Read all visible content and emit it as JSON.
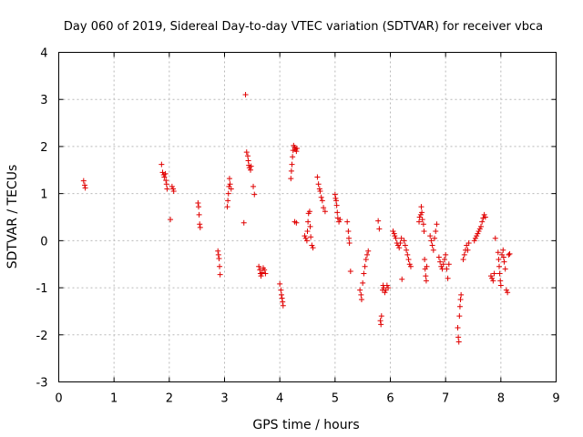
{
  "chart_data": {
    "type": "scatter",
    "title": "Day 060 of 2019, Sidereal Day-to-day VTEC variation (SDTVAR) for receiver vbca",
    "xlabel": "GPS time / hours",
    "ylabel": "SDTVAR / TECUs",
    "xlim": [
      0,
      9
    ],
    "ylim": [
      -3,
      4
    ],
    "xticks": [
      "0",
      "1",
      "2",
      "3",
      "4",
      "5",
      "6",
      "7",
      "8",
      "9"
    ],
    "yticks": [
      "-3",
      "-2",
      "-1",
      "0",
      "1",
      "2",
      "3",
      "4"
    ],
    "grid": true,
    "marker": "+",
    "color": "#e00000",
    "series": [
      {
        "name": "SDTVAR",
        "points": [
          [
            0.45,
            1.27
          ],
          [
            0.47,
            1.18
          ],
          [
            0.48,
            1.12
          ],
          [
            1.86,
            1.62
          ],
          [
            1.88,
            1.45
          ],
          [
            1.9,
            1.4
          ],
          [
            1.91,
            1.35
          ],
          [
            1.93,
            1.42
          ],
          [
            1.94,
            1.28
          ],
          [
            1.95,
            1.2
          ],
          [
            1.96,
            1.1
          ],
          [
            2.02,
            0.45
          ],
          [
            2.05,
            1.15
          ],
          [
            2.07,
            1.1
          ],
          [
            2.08,
            1.05
          ],
          [
            2.52,
            0.8
          ],
          [
            2.53,
            0.72
          ],
          [
            2.54,
            0.55
          ],
          [
            2.55,
            0.35
          ],
          [
            2.56,
            0.28
          ],
          [
            2.88,
            -0.22
          ],
          [
            2.89,
            -0.3
          ],
          [
            2.9,
            -0.38
          ],
          [
            2.91,
            -0.55
          ],
          [
            2.92,
            -0.72
          ],
          [
            3.05,
            0.72
          ],
          [
            3.06,
            0.85
          ],
          [
            3.07,
            1.0
          ],
          [
            3.08,
            1.15
          ],
          [
            3.09,
            1.32
          ],
          [
            3.1,
            1.2
          ],
          [
            3.12,
            1.1
          ],
          [
            3.35,
            0.38
          ],
          [
            3.38,
            3.1
          ],
          [
            3.4,
            1.88
          ],
          [
            3.42,
            1.8
          ],
          [
            3.43,
            1.7
          ],
          [
            3.44,
            1.6
          ],
          [
            3.45,
            1.55
          ],
          [
            3.47,
            1.5
          ],
          [
            3.48,
            1.58
          ],
          [
            3.52,
            1.15
          ],
          [
            3.54,
            0.98
          ],
          [
            3.62,
            -0.55
          ],
          [
            3.64,
            -0.62
          ],
          [
            3.65,
            -0.7
          ],
          [
            3.66,
            -0.75
          ],
          [
            3.68,
            -0.68
          ],
          [
            3.7,
            -0.58
          ],
          [
            3.72,
            -0.62
          ],
          [
            3.74,
            -0.7
          ],
          [
            4.0,
            -0.92
          ],
          [
            4.02,
            -1.05
          ],
          [
            4.03,
            -1.15
          ],
          [
            4.04,
            -1.22
          ],
          [
            4.05,
            -1.3
          ],
          [
            4.06,
            -1.38
          ],
          [
            4.2,
            1.32
          ],
          [
            4.21,
            1.48
          ],
          [
            4.22,
            1.62
          ],
          [
            4.23,
            1.78
          ],
          [
            4.24,
            1.92
          ],
          [
            4.25,
            2.02
          ],
          [
            4.27,
            1.98
          ],
          [
            4.28,
            1.94
          ],
          [
            4.3,
            1.9
          ],
          [
            4.31,
            1.96
          ],
          [
            4.27,
            0.4
          ],
          [
            4.3,
            0.38
          ],
          [
            4.45,
            0.1
          ],
          [
            4.47,
            0.05
          ],
          [
            4.49,
            0.0
          ],
          [
            4.5,
            0.2
          ],
          [
            4.51,
            0.4
          ],
          [
            4.52,
            0.58
          ],
          [
            4.54,
            0.62
          ],
          [
            4.55,
            0.3
          ],
          [
            4.56,
            0.08
          ],
          [
            4.58,
            -0.1
          ],
          [
            4.6,
            -0.15
          ],
          [
            4.68,
            1.35
          ],
          [
            4.7,
            1.2
          ],
          [
            4.72,
            1.1
          ],
          [
            4.73,
            1.05
          ],
          [
            4.75,
            0.92
          ],
          [
            4.77,
            0.85
          ],
          [
            4.79,
            0.7
          ],
          [
            4.82,
            0.62
          ],
          [
            5.0,
            0.98
          ],
          [
            5.01,
            0.9
          ],
          [
            5.02,
            0.85
          ],
          [
            5.03,
            0.75
          ],
          [
            5.04,
            0.6
          ],
          [
            5.05,
            0.48
          ],
          [
            5.07,
            0.4
          ],
          [
            5.09,
            0.45
          ],
          [
            5.22,
            0.4
          ],
          [
            5.24,
            0.2
          ],
          [
            5.25,
            0.05
          ],
          [
            5.26,
            -0.05
          ],
          [
            5.28,
            -0.65
          ],
          [
            5.45,
            -1.05
          ],
          [
            5.47,
            -1.15
          ],
          [
            5.48,
            -1.25
          ],
          [
            5.5,
            -0.9
          ],
          [
            5.52,
            -0.7
          ],
          [
            5.54,
            -0.55
          ],
          [
            5.56,
            -0.4
          ],
          [
            5.58,
            -0.3
          ],
          [
            5.6,
            -0.22
          ],
          [
            5.78,
            0.42
          ],
          [
            5.8,
            0.25
          ],
          [
            5.82,
            -1.7
          ],
          [
            5.83,
            -1.78
          ],
          [
            5.84,
            -1.6
          ],
          [
            5.86,
            -1.05
          ],
          [
            5.87,
            -0.95
          ],
          [
            5.88,
            -1.0
          ],
          [
            5.9,
            -1.1
          ],
          [
            5.92,
            -1.05
          ],
          [
            5.94,
            -0.95
          ],
          [
            5.96,
            -1.0
          ],
          [
            6.05,
            0.2
          ],
          [
            6.07,
            0.15
          ],
          [
            6.08,
            0.1
          ],
          [
            6.1,
            0.05
          ],
          [
            6.12,
            -0.05
          ],
          [
            6.14,
            -0.1
          ],
          [
            6.16,
            -0.15
          ],
          [
            6.18,
            -0.05
          ],
          [
            6.2,
            0.05
          ],
          [
            6.21,
            -0.82
          ],
          [
            6.25,
            0.0
          ],
          [
            6.27,
            -0.1
          ],
          [
            6.29,
            -0.2
          ],
          [
            6.31,
            -0.3
          ],
          [
            6.33,
            -0.4
          ],
          [
            6.35,
            -0.5
          ],
          [
            6.37,
            -0.55
          ],
          [
            6.52,
            0.4
          ],
          [
            6.53,
            0.5
          ],
          [
            6.55,
            0.55
          ],
          [
            6.56,
            0.72
          ],
          [
            6.57,
            0.6
          ],
          [
            6.58,
            0.45
          ],
          [
            6.6,
            0.35
          ],
          [
            6.61,
            0.2
          ],
          [
            6.62,
            -0.4
          ],
          [
            6.63,
            -0.6
          ],
          [
            6.64,
            -0.75
          ],
          [
            6.65,
            -0.85
          ],
          [
            6.66,
            -0.55
          ],
          [
            6.72,
            0.1
          ],
          [
            6.74,
            0.0
          ],
          [
            6.76,
            -0.1
          ],
          [
            6.78,
            -0.2
          ],
          [
            6.8,
            0.05
          ],
          [
            6.82,
            0.2
          ],
          [
            6.84,
            0.35
          ],
          [
            6.88,
            -0.35
          ],
          [
            6.9,
            -0.45
          ],
          [
            6.92,
            -0.55
          ],
          [
            6.94,
            -0.6
          ],
          [
            6.96,
            -0.5
          ],
          [
            6.98,
            -0.4
          ],
          [
            7.0,
            -0.3
          ],
          [
            7.02,
            -0.6
          ],
          [
            7.04,
            -0.8
          ],
          [
            7.06,
            -0.5
          ],
          [
            7.22,
            -1.85
          ],
          [
            7.23,
            -2.05
          ],
          [
            7.24,
            -2.15
          ],
          [
            7.25,
            -1.6
          ],
          [
            7.26,
            -1.4
          ],
          [
            7.27,
            -1.25
          ],
          [
            7.28,
            -1.15
          ],
          [
            7.32,
            -0.4
          ],
          [
            7.34,
            -0.3
          ],
          [
            7.36,
            -0.2
          ],
          [
            7.38,
            -0.1
          ],
          [
            7.4,
            -0.2
          ],
          [
            7.42,
            -0.05
          ],
          [
            7.52,
            0.0
          ],
          [
            7.54,
            0.05
          ],
          [
            7.56,
            0.1
          ],
          [
            7.58,
            0.15
          ],
          [
            7.6,
            0.2
          ],
          [
            7.62,
            0.25
          ],
          [
            7.64,
            0.3
          ],
          [
            7.66,
            0.4
          ],
          [
            7.68,
            0.48
          ],
          [
            7.7,
            0.55
          ],
          [
            7.72,
            0.5
          ],
          [
            7.82,
            -0.75
          ],
          [
            7.84,
            -0.8
          ],
          [
            7.86,
            -0.85
          ],
          [
            7.88,
            -0.7
          ],
          [
            7.9,
            0.05
          ],
          [
            7.95,
            -0.25
          ],
          [
            7.96,
            -0.4
          ],
          [
            7.97,
            -0.55
          ],
          [
            7.98,
            -0.7
          ],
          [
            7.99,
            -0.85
          ],
          [
            8.0,
            -0.95
          ],
          [
            8.02,
            -0.3
          ],
          [
            8.04,
            -0.2
          ],
          [
            8.05,
            -0.35
          ],
          [
            8.06,
            -0.45
          ],
          [
            8.08,
            -0.6
          ],
          [
            8.1,
            -1.05
          ],
          [
            8.12,
            -1.1
          ],
          [
            8.14,
            -0.3
          ],
          [
            8.16,
            -0.28
          ]
        ]
      }
    ]
  }
}
